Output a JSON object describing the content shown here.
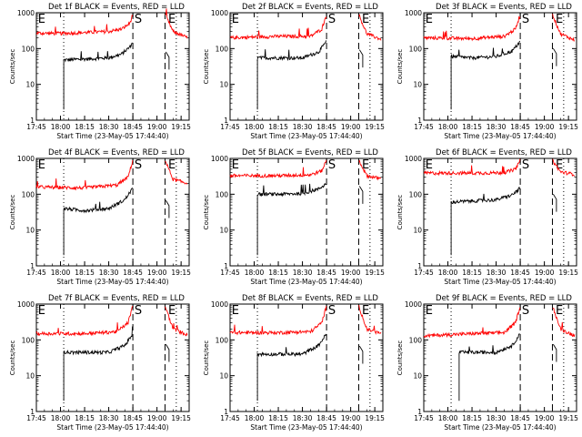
{
  "chart_data": [
    {
      "type": "line",
      "title": "Det 1f BLACK = Events, RED = LLD",
      "xlabel": "Start Time (23-May-05 17:44:40)",
      "ylabel": "Counts/sec",
      "yscale": "log",
      "ylim": [
        1,
        1000
      ],
      "ytick_labels": [
        "1",
        "10",
        "100",
        "1000"
      ],
      "xtick_labels": [
        "17:45",
        "18:00",
        "18:15",
        "18:30",
        "18:45",
        "19:00",
        "19:15"
      ],
      "markers": [
        "E",
        "S",
        "E"
      ],
      "series": [
        {
          "color": "#000000",
          "start_time": "18:02",
          "end_time": "18:45",
          "start_value": 48,
          "end_value": 150,
          "x": [
            "18:02",
            "18:10",
            "18:20",
            "18:30",
            "18:38",
            "18:43",
            "18:45"
          ],
          "y": [
            48,
            50,
            52,
            55,
            70,
            110,
            150
          ]
        },
        {
          "color": "#ff0000",
          "start_time": "17:45",
          "end_time": "19:19",
          "start_value": 270,
          "end_value": 200,
          "x": [
            "17:45",
            "18:00",
            "18:15",
            "18:30",
            "18:38",
            "18:43",
            "18:45",
            "19:05",
            "19:10",
            "19:19"
          ],
          "y": [
            270,
            265,
            280,
            300,
            350,
            500,
            900,
            900,
            300,
            200
          ]
        }
      ]
    },
    {
      "type": "line",
      "title": "Det 2f BLACK = Events, RED = LLD",
      "xlabel": "Start Time (23-May-05 17:44:40)",
      "ylabel": "Counts/sec",
      "yscale": "log",
      "ylim": [
        1,
        1000
      ],
      "ytick_labels": [
        "1",
        "10",
        "100",
        "1000"
      ],
      "xtick_labels": [
        "17:45",
        "18:00",
        "18:15",
        "18:30",
        "18:45",
        "19:00",
        "19:15"
      ],
      "markers": [
        "E",
        "S",
        "E"
      ],
      "series": [
        {
          "color": "#000000",
          "start_time": "18:02",
          "end_time": "18:45",
          "start_value": 55,
          "end_value": 160,
          "x": [
            "18:02",
            "18:15",
            "18:30",
            "18:40",
            "18:45"
          ],
          "y": [
            55,
            55,
            55,
            80,
            160
          ]
        },
        {
          "color": "#ff0000",
          "start_time": "17:45",
          "end_time": "19:19",
          "start_value": 200,
          "end_value": 180,
          "x": [
            "17:45",
            "18:15",
            "18:35",
            "18:42",
            "18:45",
            "19:05",
            "19:10",
            "19:19"
          ],
          "y": [
            200,
            220,
            220,
            350,
            900,
            900,
            260,
            180
          ]
        }
      ]
    },
    {
      "type": "line",
      "title": "Det 3f BLACK = Events, RED = LLD",
      "xlabel": "Start Time (23-May-05 17:44:40)",
      "ylabel": "Counts/sec",
      "yscale": "log",
      "ylim": [
        1,
        1000
      ],
      "ytick_labels": [
        "1",
        "10",
        "100",
        "1000"
      ],
      "xtick_labels": [
        "17:45",
        "18:00",
        "18:15",
        "18:30",
        "18:45",
        "19:00",
        "19:15"
      ],
      "markers": [
        "E",
        "S",
        "E"
      ],
      "series": [
        {
          "color": "#000000",
          "start_time": "18:02",
          "end_time": "18:45",
          "start_value": 60,
          "end_value": 160,
          "x": [
            "18:02",
            "18:15",
            "18:30",
            "18:40",
            "18:45"
          ],
          "y": [
            60,
            55,
            60,
            85,
            160
          ]
        },
        {
          "color": "#ff0000",
          "start_time": "17:45",
          "end_time": "19:19",
          "start_value": 200,
          "end_value": 170,
          "x": [
            "17:45",
            "18:15",
            "18:35",
            "18:42",
            "18:45",
            "19:05",
            "19:10",
            "19:19"
          ],
          "y": [
            200,
            190,
            220,
            350,
            900,
            900,
            260,
            170
          ]
        }
      ]
    },
    {
      "type": "line",
      "title": "Det 4f BLACK = Events, RED = LLD",
      "xlabel": "Start Time (23-May-05 17:44:40)",
      "ylabel": "Counts/sec",
      "yscale": "log",
      "ylim": [
        1,
        1000
      ],
      "ytick_labels": [
        "1",
        "10",
        "100",
        "1000"
      ],
      "xtick_labels": [
        "17:45",
        "18:00",
        "18:15",
        "18:30",
        "18:45",
        "19:00",
        "19:15"
      ],
      "markers": [
        "E",
        "S",
        "E"
      ],
      "series": [
        {
          "color": "#000000",
          "start_time": "18:02",
          "end_time": "18:45",
          "start_value": 40,
          "end_value": 150,
          "x": [
            "18:02",
            "18:15",
            "18:30",
            "18:40",
            "18:45"
          ],
          "y": [
            40,
            35,
            40,
            70,
            150
          ]
        },
        {
          "color": "#ff0000",
          "start_time": "17:45",
          "end_time": "19:19",
          "start_value": 160,
          "end_value": 200,
          "x": [
            "17:45",
            "18:15",
            "18:35",
            "18:42",
            "18:45",
            "19:05",
            "19:10",
            "19:19"
          ],
          "y": [
            160,
            150,
            180,
            300,
            900,
            900,
            260,
            200
          ]
        }
      ]
    },
    {
      "type": "line",
      "title": "Det 5f BLACK = Events, RED = LLD",
      "xlabel": "Start Time (23-May-05 17:44:40)",
      "ylabel": "Counts/sec",
      "yscale": "log",
      "ylim": [
        1,
        1000
      ],
      "ytick_labels": [
        "1",
        "10",
        "100",
        "1000"
      ],
      "xtick_labels": [
        "17:45",
        "18:00",
        "18:15",
        "18:30",
        "18:45",
        "19:00",
        "19:15"
      ],
      "markers": [
        "E",
        "S",
        "E"
      ],
      "series": [
        {
          "color": "#000000",
          "start_time": "18:02",
          "end_time": "18:45",
          "start_value": 100,
          "end_value": 200,
          "x": [
            "18:02",
            "18:15",
            "18:30",
            "18:40",
            "18:45"
          ],
          "y": [
            100,
            100,
            105,
            140,
            200
          ]
        },
        {
          "color": "#ff0000",
          "start_time": "17:45",
          "end_time": "19:19",
          "start_value": 330,
          "end_value": 270,
          "x": [
            "17:45",
            "18:15",
            "18:35",
            "18:42",
            "18:45",
            "19:05",
            "19:10",
            "19:19"
          ],
          "y": [
            330,
            330,
            350,
            450,
            900,
            900,
            330,
            270
          ]
        }
      ]
    },
    {
      "type": "line",
      "title": "Det 6f BLACK = Events, RED = LLD",
      "xlabel": "Start Time (23-May-05 17:44:40)",
      "ylabel": "Counts/sec",
      "yscale": "log",
      "ylim": [
        1,
        1000
      ],
      "ytick_labels": [
        "1",
        "10",
        "100",
        "1000"
      ],
      "xtick_labels": [
        "17:45",
        "18:00",
        "18:15",
        "18:30",
        "18:45",
        "19:00",
        "19:15"
      ],
      "markers": [
        "E",
        "S",
        "E"
      ],
      "series": [
        {
          "color": "#000000",
          "start_time": "18:02",
          "end_time": "18:45",
          "start_value": 60,
          "end_value": 150,
          "x": [
            "18:02",
            "18:15",
            "18:30",
            "18:40",
            "18:45"
          ],
          "y": [
            60,
            65,
            70,
            95,
            150
          ]
        },
        {
          "color": "#ff0000",
          "start_time": "17:45",
          "end_time": "19:19",
          "start_value": 390,
          "end_value": 360,
          "x": [
            "17:45",
            "18:15",
            "18:35",
            "18:42",
            "18:45",
            "19:05",
            "19:10",
            "19:19"
          ],
          "y": [
            390,
            390,
            400,
            500,
            900,
            900,
            420,
            360
          ]
        }
      ]
    },
    {
      "type": "line",
      "title": "Det 7f BLACK = Events, RED = LLD",
      "xlabel": "Start Time (23-May-05 17:44:40)",
      "ylabel": "Counts/sec",
      "yscale": "log",
      "ylim": [
        1,
        1000
      ],
      "ytick_labels": [
        "1",
        "10",
        "100",
        "1000"
      ],
      "xtick_labels": [
        "17:45",
        "18:00",
        "18:15",
        "18:30",
        "18:45",
        "19:00",
        "19:15"
      ],
      "markers": [
        "E",
        "S",
        "E"
      ],
      "series": [
        {
          "color": "#000000",
          "start_time": "18:02",
          "end_time": "18:45",
          "start_value": 45,
          "end_value": 150,
          "x": [
            "18:02",
            "18:15",
            "18:30",
            "18:40",
            "18:45"
          ],
          "y": [
            45,
            45,
            45,
            70,
            150
          ]
        },
        {
          "color": "#ff0000",
          "start_time": "17:45",
          "end_time": "19:19",
          "start_value": 150,
          "end_value": 140,
          "x": [
            "17:45",
            "18:15",
            "18:35",
            "18:42",
            "18:45",
            "19:05",
            "19:10",
            "19:19"
          ],
          "y": [
            150,
            150,
            170,
            300,
            900,
            900,
            200,
            140
          ]
        }
      ]
    },
    {
      "type": "line",
      "title": "Det 8f BLACK = Events, RED = LLD",
      "xlabel": "Start Time (23-May-05 17:44:40)",
      "ylabel": "Counts/sec",
      "yscale": "log",
      "ylim": [
        1,
        1000
      ],
      "ytick_labels": [
        "1",
        "10",
        "100",
        "1000"
      ],
      "xtick_labels": [
        "17:45",
        "18:00",
        "18:15",
        "18:30",
        "18:45",
        "19:00",
        "19:15"
      ],
      "markers": [
        "E",
        "S",
        "E"
      ],
      "series": [
        {
          "color": "#000000",
          "start_time": "18:02",
          "end_time": "18:45",
          "start_value": 40,
          "end_value": 150,
          "x": [
            "18:02",
            "18:15",
            "18:30",
            "18:40",
            "18:45"
          ],
          "y": [
            40,
            40,
            40,
            70,
            150
          ]
        },
        {
          "color": "#ff0000",
          "start_time": "17:45",
          "end_time": "19:19",
          "start_value": 160,
          "end_value": 150,
          "x": [
            "17:45",
            "18:15",
            "18:35",
            "18:42",
            "18:45",
            "19:05",
            "19:10",
            "19:19"
          ],
          "y": [
            160,
            160,
            170,
            300,
            900,
            900,
            200,
            150
          ]
        }
      ]
    },
    {
      "type": "line",
      "title": "Det 9f BLACK = Events, RED = LLD",
      "xlabel": "Start Time (23-May-05 17:44:40)",
      "ylabel": "Counts/sec",
      "yscale": "log",
      "ylim": [
        1,
        1000
      ],
      "ytick_labels": [
        "1",
        "10",
        "100",
        "1000"
      ],
      "xtick_labels": [
        "17:45",
        "18:00",
        "18:15",
        "18:30",
        "18:45",
        "19:00",
        "19:15"
      ],
      "markers": [
        "E",
        "S",
        "E"
      ],
      "series": [
        {
          "color": "#000000",
          "start_time": "18:07",
          "end_time": "18:45",
          "start_value": 45,
          "end_value": 150,
          "x": [
            "18:07",
            "18:15",
            "18:30",
            "18:40",
            "18:45"
          ],
          "y": [
            45,
            45,
            45,
            70,
            150
          ]
        },
        {
          "color": "#ff0000",
          "start_time": "17:45",
          "end_time": "19:19",
          "start_value": 130,
          "end_value": 130,
          "x": [
            "17:45",
            "18:15",
            "18:35",
            "18:42",
            "18:45",
            "19:05",
            "19:10",
            "19:19"
          ],
          "y": [
            130,
            150,
            160,
            300,
            900,
            900,
            200,
            130
          ]
        }
      ]
    }
  ]
}
